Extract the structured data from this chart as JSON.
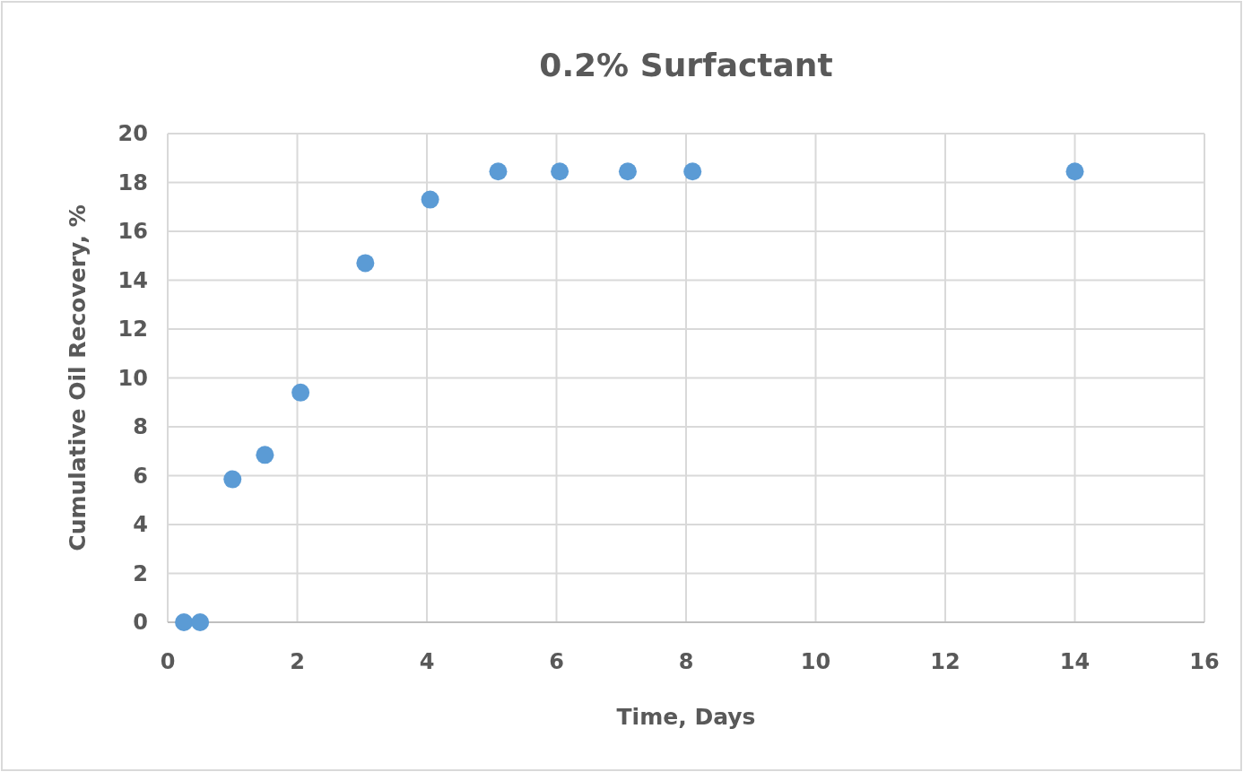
{
  "chart_data": {
    "type": "scatter",
    "title": "0.2% Surfactant",
    "xlabel": "Time, Days",
    "ylabel": "Cumulative Oil Recovery, %",
    "x": [
      0.25,
      0.5,
      1,
      1.5,
      2.05,
      3.05,
      4.05,
      5.1,
      6.05,
      7.1,
      8.1,
      14
    ],
    "series": [
      {
        "color": "#5b9bd5",
        "values": [
          0,
          0,
          5.85,
          6.85,
          9.4,
          14.7,
          17.3,
          18.45,
          18.45,
          18.45,
          18.45,
          18.45
        ]
      }
    ],
    "xlim": [
      0,
      16
    ],
    "xticks": [
      0,
      2,
      4,
      6,
      8,
      10,
      12,
      14,
      16
    ],
    "ylim": [
      0,
      20
    ],
    "yticks": [
      0,
      2,
      4,
      6,
      8,
      10,
      12,
      14,
      16,
      18,
      20
    ],
    "grid": true,
    "marker": "circle"
  }
}
